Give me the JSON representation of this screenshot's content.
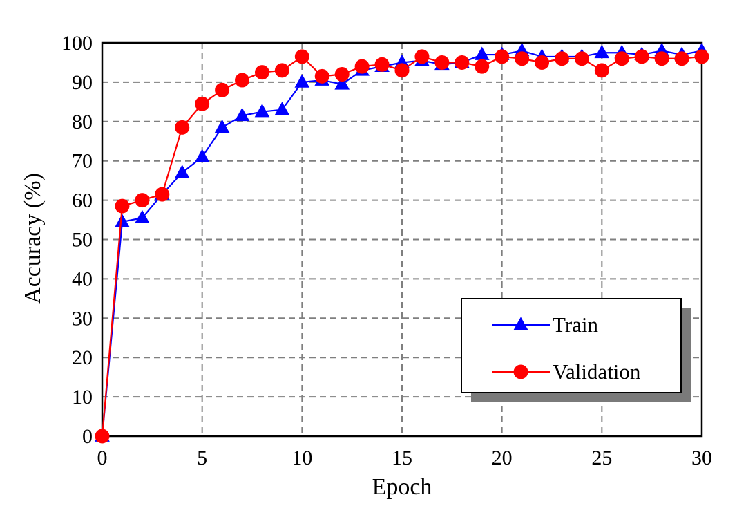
{
  "chart_data": {
    "type": "line",
    "title": "",
    "xlabel": "Epoch",
    "ylabel": "Accuracy (%)",
    "xlim": [
      0,
      30
    ],
    "ylim": [
      0,
      100
    ],
    "xticks": [
      0,
      5,
      10,
      15,
      20,
      25,
      30
    ],
    "yticks": [
      0,
      10,
      20,
      30,
      40,
      50,
      60,
      70,
      80,
      90,
      100
    ],
    "grid": true,
    "legend_position": "bottom-right",
    "x": [
      0,
      1,
      2,
      3,
      4,
      5,
      6,
      7,
      8,
      9,
      10,
      11,
      12,
      13,
      14,
      15,
      16,
      17,
      18,
      19,
      20,
      21,
      22,
      23,
      24,
      25,
      26,
      27,
      28,
      29,
      30
    ],
    "series": [
      {
        "name": "Train",
        "color": "#0000ff",
        "marker": "triangle",
        "values": [
          0,
          54.5,
          55.5,
          61.5,
          67,
          71,
          78.5,
          81.5,
          82.5,
          83,
          90,
          90.5,
          89.5,
          93,
          94,
          95,
          95.5,
          94.5,
          95,
          97,
          97,
          98,
          96.5,
          96.5,
          96.5,
          97.5,
          97.5,
          97,
          98,
          97,
          98
        ]
      },
      {
        "name": "Validation",
        "color": "#ff0000",
        "marker": "circle",
        "values": [
          0,
          58.5,
          60,
          61.5,
          78.5,
          84.5,
          88,
          90.5,
          92.5,
          93,
          96.5,
          91.5,
          92,
          94,
          94.5,
          93,
          96.5,
          95,
          95,
          94,
          96.5,
          96,
          95,
          96,
          96,
          93,
          96,
          96.5,
          96,
          96,
          96.5
        ]
      }
    ]
  }
}
